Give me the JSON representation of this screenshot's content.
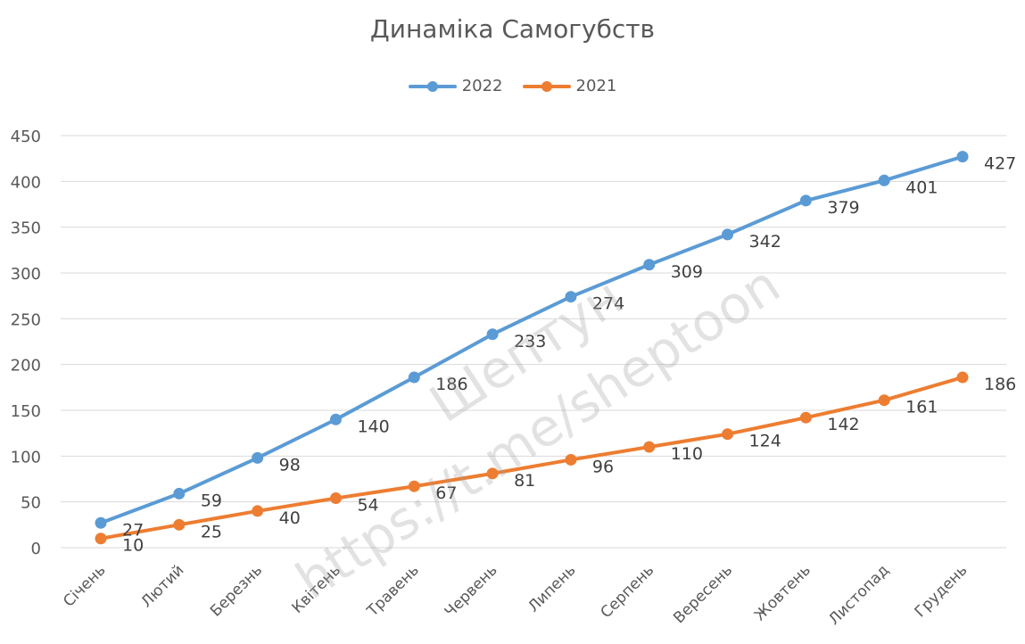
{
  "chart_data": {
    "type": "line",
    "title": "Динаміка Самогубств",
    "categories": [
      "Січень",
      "Лютий",
      "Березнь",
      "Квітень",
      "Травень",
      "Червень",
      "Липень",
      "Серпень",
      "Вересень",
      "Жовтень",
      "Листопад",
      "Грудень"
    ],
    "series": [
      {
        "name": "2022",
        "color": "#5B9BD5",
        "values": [
          27,
          59,
          98,
          140,
          186,
          233,
          274,
          309,
          342,
          379,
          401,
          427
        ]
      },
      {
        "name": "2021",
        "color": "#ED7D31",
        "values": [
          10,
          25,
          40,
          54,
          67,
          81,
          96,
          110,
          124,
          142,
          161,
          186
        ]
      }
    ],
    "yticks": [
      "0",
      "50",
      "100",
      "150",
      "200",
      "250",
      "300",
      "350",
      "400",
      "450"
    ],
    "ylim": [
      0,
      450
    ],
    "grid": true,
    "legend_position": "top-center",
    "data_labels": true
  },
  "watermark": {
    "line1": "Шептун",
    "line2": "https://t.me/sheptoon"
  }
}
